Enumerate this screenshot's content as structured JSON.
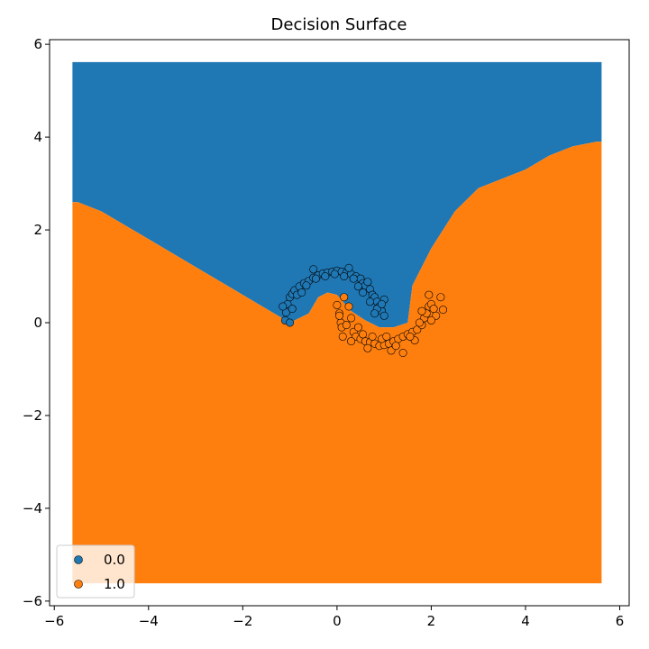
{
  "chart_data": {
    "type": "scatter",
    "title": "Decision Surface",
    "xlabel": "",
    "ylabel": "",
    "xlim": [
      -6.1,
      6.2
    ],
    "ylim": [
      -6.1,
      6.1
    ],
    "x_ticks": [
      -6,
      -4,
      -2,
      0,
      2,
      4,
      6
    ],
    "x_tick_labels": [
      "−6",
      "−4",
      "−2",
      "0",
      "2",
      "4",
      "6"
    ],
    "y_ticks": [
      -6,
      -4,
      -2,
      0,
      2,
      4,
      6
    ],
    "y_tick_labels": [
      "−6",
      "−4",
      "−2",
      "0",
      "2",
      "4",
      "6"
    ],
    "grid": false,
    "legend_position": "lower-left",
    "background_grid": {
      "description": "Predicted class over grid",
      "x_range": [
        -5.5,
        5.5
      ],
      "y_range": [
        -5.5,
        5.5
      ],
      "class_colors": {
        "0.0": "#1f77b4",
        "1.0": "#ff7f0e"
      },
      "boundary": {
        "x": [
          -5.5,
          -5.0,
          -4.0,
          -3.0,
          -2.0,
          -1.5,
          -1.0,
          -0.6,
          -0.4,
          -0.2,
          0.0,
          0.3,
          0.6,
          0.9,
          1.2,
          1.5,
          1.6,
          2.0,
          2.5,
          3.0,
          3.5,
          4.0,
          4.5,
          5.0,
          5.5
        ],
        "y": [
          2.6,
          2.4,
          1.8,
          1.2,
          0.6,
          0.3,
          0.0,
          0.2,
          0.55,
          0.65,
          0.6,
          0.25,
          0.05,
          -0.1,
          -0.1,
          0.0,
          0.8,
          1.6,
          2.4,
          2.9,
          3.1,
          3.3,
          3.6,
          3.8,
          3.9
        ]
      }
    },
    "series": [
      {
        "name": "0.0",
        "color": "#1f77b4",
        "points": [
          [
            -1.1,
            0.05
          ],
          [
            -1.08,
            0.22
          ],
          [
            -1.05,
            0.4
          ],
          [
            -1.0,
            0.55
          ],
          [
            -0.95,
            0.62
          ],
          [
            -0.9,
            0.7
          ],
          [
            -0.8,
            0.78
          ],
          [
            -0.7,
            0.85
          ],
          [
            -0.6,
            0.9
          ],
          [
            -0.5,
            0.97
          ],
          [
            -0.4,
            1.02
          ],
          [
            -0.3,
            1.06
          ],
          [
            -0.2,
            1.08
          ],
          [
            -0.1,
            1.1
          ],
          [
            0.0,
            1.12
          ],
          [
            0.1,
            1.1
          ],
          [
            0.2,
            1.08
          ],
          [
            0.3,
            1.05
          ],
          [
            0.4,
            1.0
          ],
          [
            0.5,
            0.95
          ],
          [
            0.55,
            0.85
          ],
          [
            0.6,
            0.8
          ],
          [
            0.7,
            0.72
          ],
          [
            0.75,
            0.6
          ],
          [
            0.8,
            0.55
          ],
          [
            0.85,
            0.45
          ],
          [
            0.9,
            0.35
          ],
          [
            0.95,
            0.25
          ],
          [
            1.0,
            0.15
          ],
          [
            1.0,
            0.5
          ],
          [
            -1.0,
            0.0
          ],
          [
            -0.95,
            0.3
          ],
          [
            -0.85,
            0.6
          ],
          [
            -0.65,
            0.8
          ],
          [
            -0.45,
            0.95
          ],
          [
            -0.25,
            1.0
          ],
          [
            -0.05,
            1.05
          ],
          [
            0.15,
            1.0
          ],
          [
            0.35,
            0.95
          ],
          [
            0.55,
            0.65
          ],
          [
            0.7,
            0.45
          ],
          [
            0.85,
            0.3
          ],
          [
            -1.15,
            0.35
          ],
          [
            -0.5,
            1.15
          ],
          [
            0.25,
            1.18
          ],
          [
            0.65,
            0.88
          ],
          [
            0.95,
            0.4
          ],
          [
            -0.75,
            0.65
          ],
          [
            0.45,
            0.78
          ],
          [
            0.8,
            0.2
          ]
        ]
      },
      {
        "name": "1.0",
        "color": "#ff7f0e",
        "points": [
          [
            0.0,
            0.38
          ],
          [
            0.05,
            0.2
          ],
          [
            0.08,
            0.0
          ],
          [
            0.1,
            -0.1
          ],
          [
            0.12,
            -0.3
          ],
          [
            0.2,
            -0.05
          ],
          [
            0.3,
            0.1
          ],
          [
            0.35,
            -0.2
          ],
          [
            0.4,
            -0.3
          ],
          [
            0.5,
            -0.35
          ],
          [
            0.6,
            -0.4
          ],
          [
            0.7,
            -0.42
          ],
          [
            0.8,
            -0.45
          ],
          [
            0.9,
            -0.5
          ],
          [
            1.0,
            -0.48
          ],
          [
            1.1,
            -0.45
          ],
          [
            1.2,
            -0.4
          ],
          [
            1.3,
            -0.35
          ],
          [
            1.4,
            -0.3
          ],
          [
            1.5,
            -0.25
          ],
          [
            1.6,
            -0.2
          ],
          [
            1.7,
            -0.15
          ],
          [
            1.8,
            -0.05
          ],
          [
            1.85,
            0.1
          ],
          [
            1.9,
            0.2
          ],
          [
            1.95,
            0.35
          ],
          [
            2.0,
            0.4
          ],
          [
            2.05,
            0.3
          ],
          [
            2.1,
            0.15
          ],
          [
            2.2,
            0.55
          ],
          [
            2.25,
            0.28
          ],
          [
            1.95,
            0.6
          ],
          [
            0.15,
            0.55
          ],
          [
            0.25,
            0.35
          ],
          [
            0.45,
            -0.1
          ],
          [
            0.55,
            -0.25
          ],
          [
            0.75,
            -0.3
          ],
          [
            0.95,
            -0.35
          ],
          [
            1.15,
            -0.6
          ],
          [
            1.4,
            -0.65
          ],
          [
            1.65,
            -0.38
          ],
          [
            1.75,
            0.0
          ],
          [
            0.05,
            0.15
          ],
          [
            0.3,
            -0.4
          ],
          [
            0.65,
            -0.55
          ],
          [
            1.05,
            -0.3
          ],
          [
            1.25,
            -0.5
          ],
          [
            1.55,
            -0.3
          ],
          [
            1.8,
            0.25
          ],
          [
            2.0,
            0.05
          ]
        ]
      }
    ]
  }
}
